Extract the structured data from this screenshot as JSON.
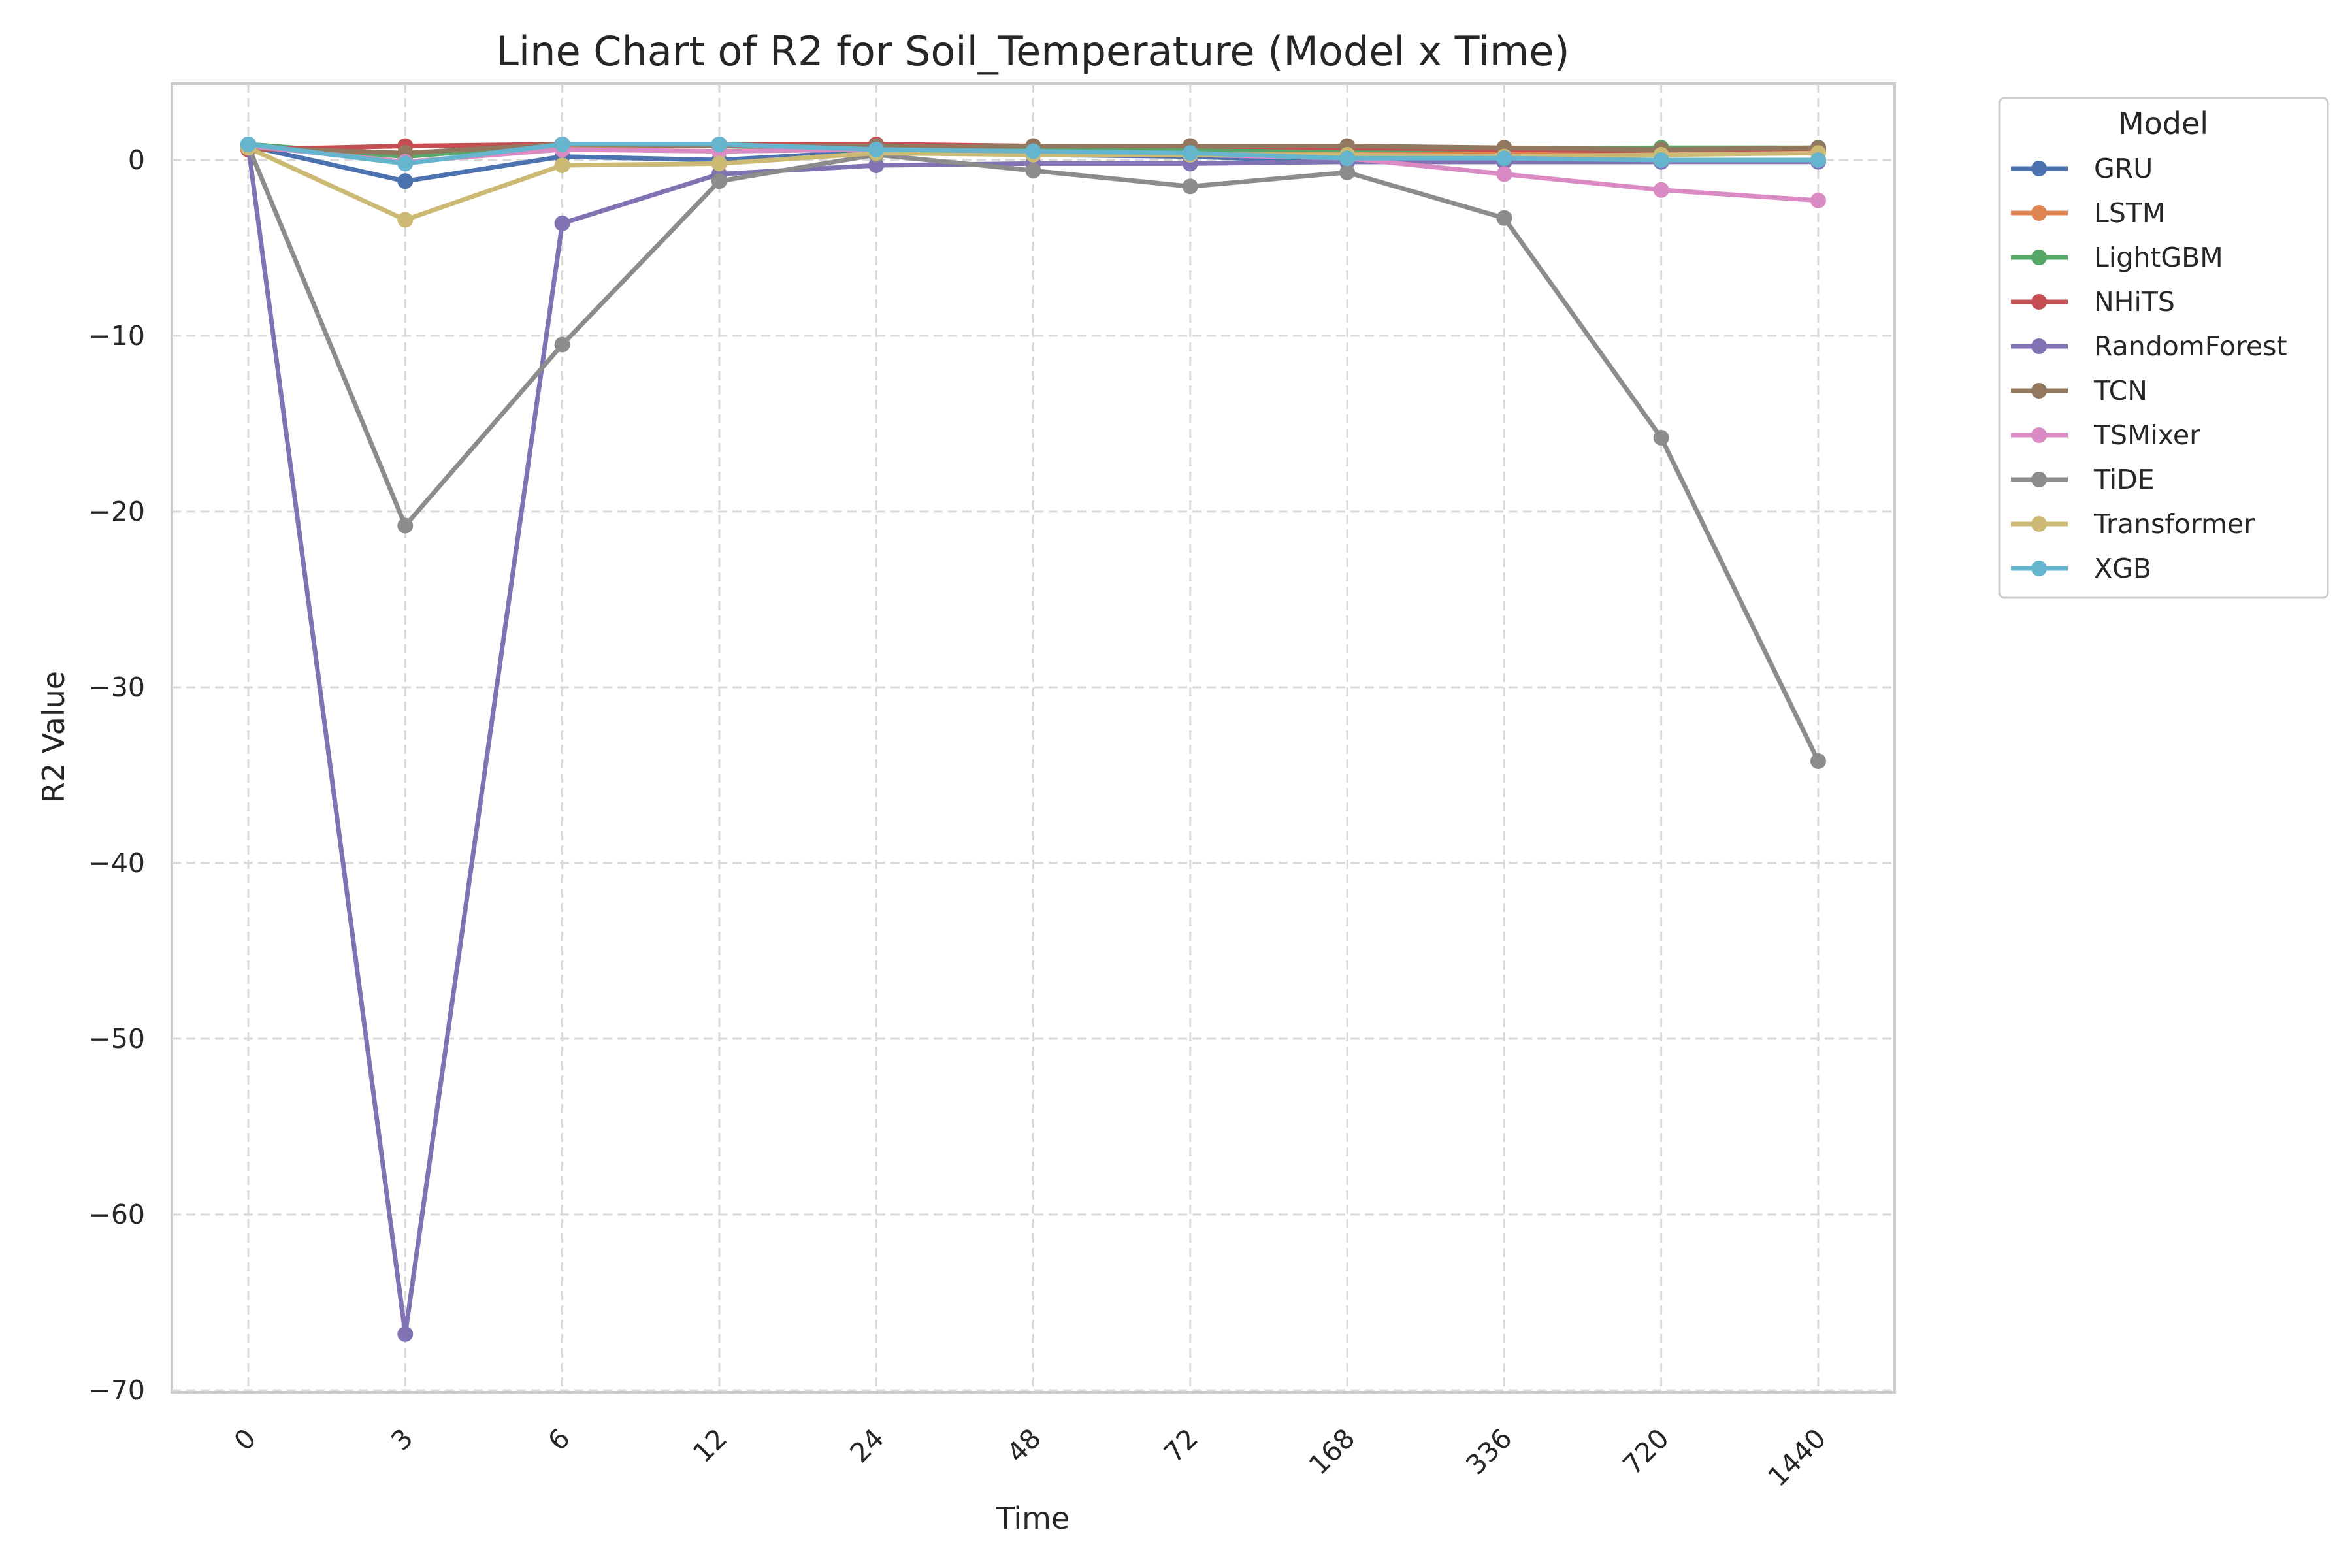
{
  "chart_data": {
    "type": "line",
    "title": "Line Chart of R2 for Soil_Temperature (Model x Time)",
    "xlabel": "Time",
    "ylabel": "R2 Value",
    "categories": [
      "0",
      "3",
      "6",
      "12",
      "24",
      "48",
      "72",
      "168",
      "336",
      "720",
      "1440"
    ],
    "y_ticks": [
      "0",
      "−10",
      "−20",
      "−30",
      "−40",
      "−50",
      "−60",
      "−70"
    ],
    "ylim": [
      -70,
      4
    ],
    "grid": true,
    "legend_title": "Model",
    "legend_position": "outside upper right",
    "series": [
      {
        "name": "GRU",
        "color": "#4c72b0",
        "values": [
          0.8,
          -1.2,
          0.2,
          0.0,
          0.5,
          0.3,
          0.2,
          -0.1,
          -0.1,
          -0.1,
          0.0
        ]
      },
      {
        "name": "LSTM",
        "color": "#dd8452",
        "values": [
          0.7,
          0.3,
          0.8,
          0.8,
          0.7,
          0.6,
          0.6,
          0.5,
          0.5,
          0.4,
          0.5
        ]
      },
      {
        "name": "LightGBM",
        "color": "#55a868",
        "values": [
          0.9,
          0.2,
          0.9,
          0.8,
          0.7,
          0.7,
          0.6,
          0.6,
          0.6,
          0.7,
          0.7
        ]
      },
      {
        "name": "NHiTS",
        "color": "#c44e52",
        "values": [
          0.6,
          0.8,
          0.9,
          0.9,
          0.9,
          0.8,
          0.8,
          0.7,
          0.6,
          0.5,
          0.6
        ]
      },
      {
        "name": "RandomForest",
        "color": "#8172b3",
        "values": [
          0.8,
          -66.8,
          -3.6,
          -0.8,
          -0.3,
          -0.2,
          -0.2,
          -0.1,
          -0.1,
          -0.1,
          -0.1
        ]
      },
      {
        "name": "TCN",
        "color": "#937860",
        "values": [
          0.7,
          0.4,
          0.9,
          0.8,
          0.8,
          0.8,
          0.8,
          0.8,
          0.7,
          0.6,
          0.7
        ]
      },
      {
        "name": "TSMixer",
        "color": "#da8bc3",
        "values": [
          0.8,
          -0.1,
          0.6,
          0.5,
          0.6,
          0.4,
          0.3,
          0.1,
          -0.8,
          -1.7,
          -2.3
        ]
      },
      {
        "name": "TiDE",
        "color": "#8c8c8c",
        "values": [
          0.8,
          -20.8,
          -10.5,
          -1.2,
          0.3,
          -0.6,
          -1.5,
          -0.7,
          -3.3,
          -15.8,
          -34.2
        ]
      },
      {
        "name": "Transformer",
        "color": "#ccb974",
        "values": [
          0.7,
          -3.4,
          -0.3,
          -0.2,
          0.4,
          0.3,
          0.3,
          0.3,
          0.2,
          0.3,
          0.4
        ]
      },
      {
        "name": "XGB",
        "color": "#64b5cd",
        "values": [
          0.9,
          -0.2,
          0.9,
          0.9,
          0.6,
          0.5,
          0.4,
          0.1,
          0.1,
          0.0,
          0.0
        ]
      }
    ]
  }
}
